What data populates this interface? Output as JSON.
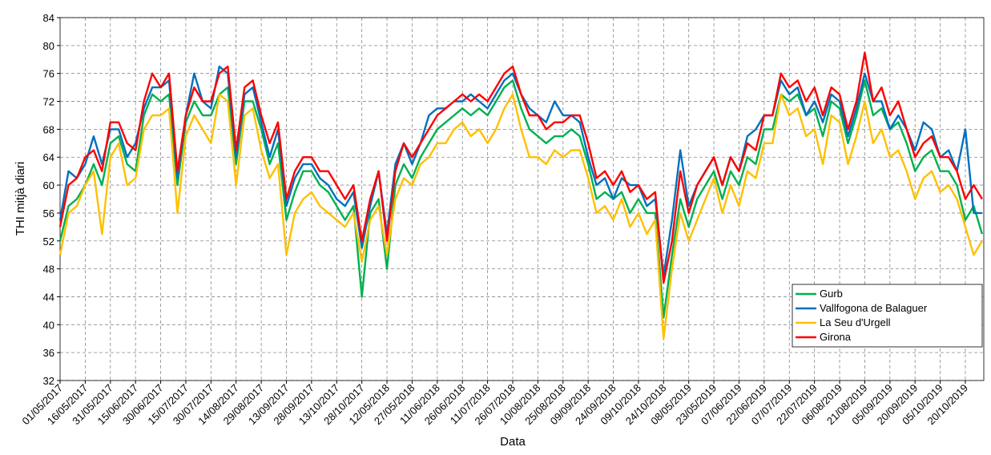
{
  "chart_data": {
    "type": "line",
    "xlabel": "Data",
    "ylabel": "THI mitjà diari",
    "categories": [
      "01/05/2017",
      null,
      null,
      "16/05/2017",
      null,
      null,
      "31/05/2017",
      null,
      null,
      "15/06/2017",
      null,
      null,
      "30/06/2017",
      null,
      null,
      "15/07/2017",
      null,
      null,
      "30/07/2017",
      null,
      null,
      "14/08/2017",
      null,
      null,
      "29/08/2017",
      null,
      null,
      "13/09/2017",
      null,
      null,
      "28/09/2017",
      null,
      null,
      "13/10/2017",
      null,
      null,
      "28/10/2017",
      null,
      null,
      "12/05/2018",
      null,
      null,
      "27/05/2018",
      null,
      null,
      "11/06/2018",
      null,
      null,
      "26/06/2018",
      null,
      null,
      "11/07/2018",
      null,
      null,
      "26/07/2018",
      null,
      null,
      "10/08/2018",
      null,
      null,
      "25/08/2018",
      null,
      null,
      "09/09/2018",
      null,
      null,
      "24/09/2018",
      null,
      null,
      "09/10/2018",
      null,
      null,
      "24/10/2018",
      null,
      null,
      "08/05/2019",
      null,
      null,
      "23/05/2019",
      null,
      null,
      "07/06/2019",
      null,
      null,
      "22/06/2019",
      null,
      null,
      "07/07/2019",
      null,
      null,
      "22/07/2019",
      null,
      null,
      "06/08/2019",
      null,
      null,
      "21/08/2019",
      null,
      null,
      "05/09/2019",
      null,
      null,
      "20/09/2019",
      null,
      null,
      "05/10/2019",
      null,
      null,
      "20/10/2019",
      null,
      null
    ],
    "series": [
      {
        "name": "Gurb",
        "color": "#00b050",
        "values": [
          52,
          57,
          58,
          60,
          63,
          60,
          66,
          67,
          63,
          62,
          70,
          73,
          72,
          73,
          60,
          69,
          72,
          70,
          70,
          73,
          74,
          63,
          72,
          72,
          68,
          63,
          66,
          55,
          59,
          62,
          62,
          60,
          59,
          57,
          55,
          57,
          44,
          56,
          58,
          48,
          60,
          63,
          61,
          64,
          66,
          68,
          69,
          70,
          71,
          70,
          71,
          70,
          72,
          74,
          75,
          71,
          68,
          67,
          66,
          67,
          67,
          68,
          67,
          63,
          58,
          59,
          58,
          59,
          56,
          58,
          56,
          56,
          41,
          50,
          58,
          54,
          58,
          60,
          62,
          58,
          62,
          60,
          64,
          63,
          68,
          68,
          73,
          72,
          73,
          70,
          71,
          67,
          72,
          71,
          66,
          70,
          75,
          70,
          71,
          68,
          69,
          66,
          62,
          64,
          65,
          62,
          62,
          60,
          55,
          57,
          53
        ]
      },
      {
        "name": "Vallfogona de Balaguer",
        "color": "#0070c0",
        "values": [
          55,
          62,
          61,
          63,
          67,
          63,
          68,
          68,
          64,
          66,
          71,
          74,
          74,
          75,
          61,
          70,
          76,
          72,
          71,
          77,
          76,
          64,
          73,
          74,
          69,
          64,
          68,
          57,
          61,
          63,
          63,
          61,
          60,
          58,
          57,
          59,
          51,
          57,
          62,
          53,
          63,
          66,
          63,
          66,
          70,
          71,
          71,
          72,
          72,
          73,
          72,
          71,
          73,
          75,
          76,
          73,
          71,
          70,
          69,
          72,
          70,
          70,
          69,
          64,
          60,
          61,
          58,
          61,
          60,
          60,
          57,
          58,
          47,
          55,
          65,
          57,
          60,
          62,
          64,
          60,
          64,
          62,
          67,
          68,
          70,
          70,
          75,
          73,
          74,
          70,
          72,
          69,
          73,
          72,
          67,
          71,
          76,
          72,
          72,
          68,
          70,
          68,
          65,
          69,
          68,
          64,
          65,
          62,
          68,
          56,
          56
        ]
      },
      {
        "name": "La Seu d'Urgell",
        "color": "#ffc000",
        "values": [
          50,
          56,
          57,
          60,
          62,
          53,
          64,
          66,
          60,
          61,
          68,
          70,
          70,
          71,
          56,
          67,
          70,
          68,
          66,
          73,
          72,
          60,
          70,
          71,
          65,
          61,
          63,
          50,
          56,
          58,
          59,
          57,
          56,
          55,
          54,
          56,
          49,
          55,
          57,
          50,
          58,
          61,
          60,
          63,
          64,
          66,
          66,
          68,
          69,
          67,
          68,
          66,
          68,
          71,
          73,
          68,
          64,
          64,
          63,
          65,
          64,
          65,
          65,
          61,
          56,
          57,
          55,
          58,
          54,
          56,
          53,
          55,
          38,
          48,
          56,
          52,
          55,
          58,
          61,
          56,
          60,
          57,
          62,
          61,
          66,
          66,
          73,
          70,
          71,
          67,
          68,
          63,
          70,
          69,
          63,
          67,
          72,
          66,
          68,
          64,
          65,
          62,
          58,
          61,
          62,
          59,
          60,
          58,
          54,
          50,
          52
        ]
      },
      {
        "name": "Girona",
        "color": "#ff0000",
        "values": [
          54,
          60,
          61,
          64,
          65,
          62,
          69,
          69,
          66,
          65,
          72,
          76,
          74,
          76,
          62,
          70,
          74,
          72,
          72,
          76,
          77,
          65,
          74,
          75,
          70,
          66,
          69,
          58,
          62,
          64,
          64,
          62,
          62,
          60,
          58,
          60,
          52,
          58,
          62,
          52,
          62,
          66,
          64,
          66,
          68,
          70,
          71,
          72,
          73,
          72,
          73,
          72,
          74,
          76,
          77,
          73,
          70,
          70,
          68,
          69,
          69,
          70,
          70,
          66,
          61,
          62,
          60,
          62,
          59,
          60,
          58,
          59,
          46,
          52,
          62,
          56,
          60,
          62,
          64,
          60,
          64,
          62,
          66,
          65,
          70,
          70,
          76,
          74,
          75,
          72,
          74,
          70,
          74,
          73,
          68,
          72,
          79,
          72,
          74,
          70,
          72,
          68,
          64,
          66,
          67,
          64,
          64,
          62,
          58,
          60,
          58
        ]
      }
    ],
    "ylim": [
      32,
      84
    ],
    "yticks": [
      32,
      36,
      40,
      44,
      48,
      52,
      56,
      60,
      64,
      68,
      72,
      76,
      80,
      84
    ],
    "grid": true,
    "legend": "lower right"
  }
}
